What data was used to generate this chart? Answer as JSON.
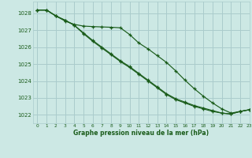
{
  "title": "Graphe pression niveau de la mer (hPa)",
  "bg_color": "#cce8e4",
  "grid_color": "#aacccc",
  "line_color": "#1a5c1a",
  "xlim": [
    -0.5,
    23
  ],
  "ylim": [
    1021.5,
    1028.7
  ],
  "yticks": [
    1022,
    1023,
    1024,
    1025,
    1026,
    1027,
    1028
  ],
  "xticks": [
    0,
    1,
    2,
    3,
    4,
    5,
    6,
    7,
    8,
    9,
    10,
    11,
    12,
    13,
    14,
    15,
    16,
    17,
    18,
    19,
    20,
    21,
    22,
    23
  ],
  "line1_x": [
    0,
    1,
    2,
    3,
    4,
    5,
    6,
    7,
    8,
    9,
    10,
    11,
    12,
    13,
    14,
    15,
    16,
    17,
    18,
    19,
    20,
    21,
    22,
    23
  ],
  "line1_y": [
    1028.2,
    1028.2,
    1027.85,
    1027.55,
    1027.35,
    1027.25,
    1027.22,
    1027.2,
    1027.18,
    1027.15,
    1026.75,
    1026.25,
    1025.9,
    1025.5,
    1025.1,
    1024.6,
    1024.05,
    1023.55,
    1023.1,
    1022.7,
    1022.35,
    1022.1,
    1022.2,
    1022.3
  ],
  "line2_x": [
    0,
    1,
    2,
    3,
    4,
    5,
    6,
    7,
    8,
    9,
    10,
    11,
    12,
    13,
    14,
    15,
    16,
    17,
    18,
    19,
    20,
    21,
    22,
    23
  ],
  "line2_y": [
    1028.2,
    1028.2,
    1027.85,
    1027.6,
    1027.3,
    1026.85,
    1026.4,
    1026.0,
    1025.6,
    1025.2,
    1024.85,
    1024.45,
    1024.05,
    1023.65,
    1023.25,
    1022.95,
    1022.75,
    1022.55,
    1022.4,
    1022.25,
    1022.1,
    1022.05,
    1022.2,
    1022.3
  ],
  "line3_x": [
    0,
    1,
    2,
    3,
    4,
    5,
    6,
    7,
    8,
    9,
    10,
    11,
    12,
    13,
    14,
    15,
    16,
    17,
    18,
    19,
    20,
    21,
    22,
    23
  ],
  "line3_y": [
    1028.2,
    1028.2,
    1027.85,
    1027.6,
    1027.3,
    1026.8,
    1026.35,
    1025.95,
    1025.55,
    1025.15,
    1024.8,
    1024.4,
    1024.0,
    1023.6,
    1023.2,
    1022.9,
    1022.7,
    1022.5,
    1022.35,
    1022.2,
    1022.1,
    1022.05,
    1022.2,
    1022.3
  ]
}
